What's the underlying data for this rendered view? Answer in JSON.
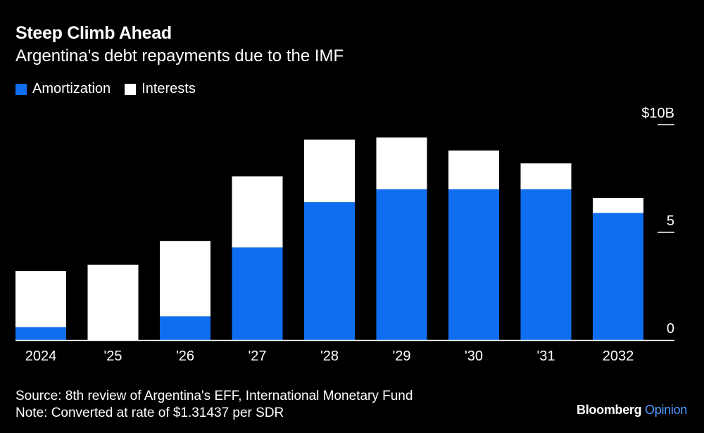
{
  "header": {
    "title": "Steep Climb Ahead",
    "subtitle": "Argentina's debt repayments due to the IMF"
  },
  "legend": [
    {
      "label": "Amortization",
      "color": "#0f6ef0"
    },
    {
      "label": "Interests",
      "color": "#ffffff"
    }
  ],
  "chart_data": {
    "type": "bar",
    "stacked": true,
    "categories": [
      "2024",
      "'25",
      "'26",
      "'27",
      "'28",
      "'29",
      "'30",
      "'31",
      "2032"
    ],
    "series": [
      {
        "name": "Amortization",
        "color": "#0f6ef0",
        "values": [
          0.6,
          0.0,
          1.1,
          4.3,
          6.4,
          7.0,
          7.0,
          7.0,
          5.9
        ]
      },
      {
        "name": "Interests",
        "color": "#ffffff",
        "values": [
          2.6,
          3.5,
          3.5,
          3.3,
          2.9,
          2.4,
          1.8,
          1.2,
          0.7
        ]
      }
    ],
    "ylim": [
      0,
      10
    ],
    "yticks": [
      {
        "value": 10,
        "label": "$10B"
      },
      {
        "value": 5,
        "label": "5"
      },
      {
        "value": 0,
        "label": "0"
      }
    ],
    "axis_side": "right",
    "grid": false
  },
  "footer": {
    "source": "Source: 8th review of Argentina's EFF, International Monetary Fund",
    "note": "Note: Converted at rate of $1.31437 per SDR",
    "brand_main": "Bloomberg",
    "brand_accent": "Opinion"
  }
}
